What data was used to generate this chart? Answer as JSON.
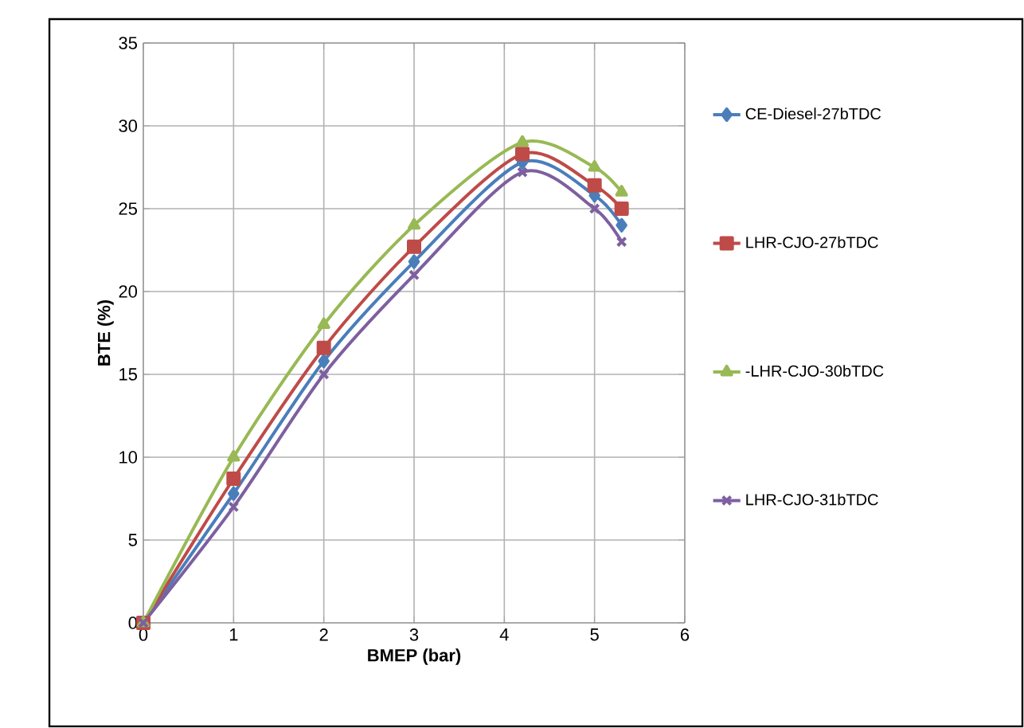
{
  "chart_data": {
    "type": "line",
    "xlabel": "BMEP (bar)",
    "ylabel": "BTE (%)",
    "xlim": [
      0,
      6
    ],
    "ylim": [
      0,
      35
    ],
    "xticks": [
      0,
      1,
      2,
      3,
      4,
      5,
      6
    ],
    "yticks": [
      0,
      5,
      10,
      15,
      20,
      25,
      30,
      35
    ],
    "grid": true,
    "legend": "right",
    "x": [
      0,
      1,
      2,
      3,
      4.2,
      5,
      5.3
    ],
    "series": [
      {
        "name": "CE-Diesel-27bTDC",
        "color": "#4a7ebb",
        "marker": "diamond",
        "values": [
          0,
          7.8,
          15.8,
          21.8,
          27.8,
          25.8,
          24
        ]
      },
      {
        "name": "LHR-CJO-27bTDC",
        "color": "#be4b48",
        "marker": "square",
        "values": [
          0,
          8.7,
          16.6,
          22.7,
          28.3,
          26.4,
          25
        ]
      },
      {
        "name": "-LHR-CJO-30bTDC",
        "color": "#98b954",
        "marker": "triangle",
        "values": [
          0,
          10,
          18,
          24,
          29,
          27.5,
          26
        ]
      },
      {
        "name": "LHR-CJO-31bTDC",
        "color": "#7d60a0",
        "marker": "cross",
        "values": [
          0,
          7,
          15,
          21,
          27.2,
          25,
          23
        ]
      }
    ]
  }
}
